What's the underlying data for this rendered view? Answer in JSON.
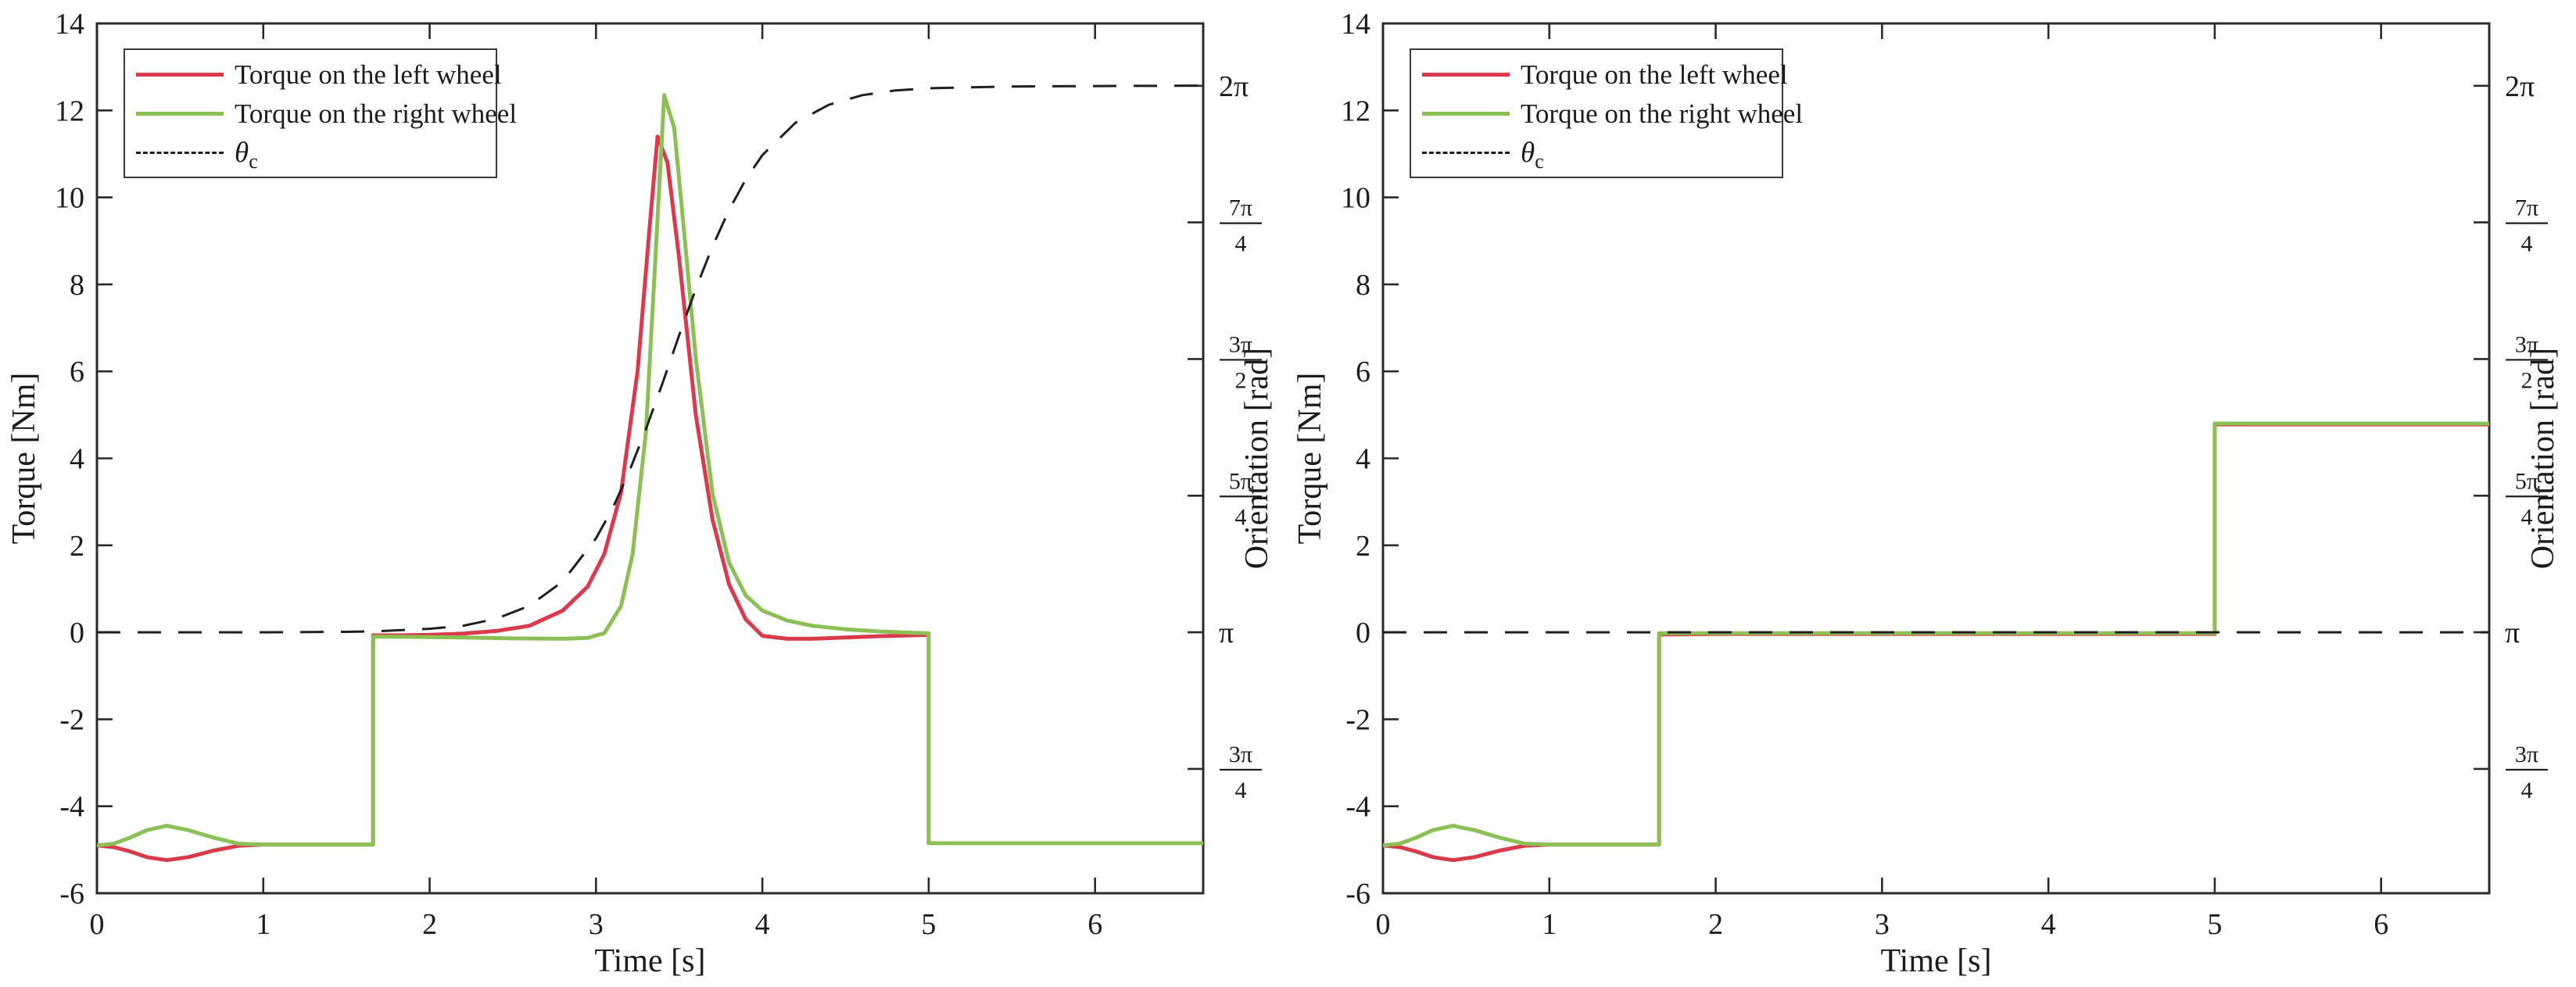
{
  "figure": {
    "background": "#ffffff",
    "colors": {
      "left_wheel": "#d93b4c",
      "right_wheel": "#8cbf55",
      "theta_c": "#1f1f1f",
      "axis": "#2a2a2a"
    }
  },
  "legend": {
    "items": [
      {
        "label": "Torque on the left wheel",
        "series": "left_wheel",
        "line": "solid"
      },
      {
        "label": "Torque on the right wheel",
        "series": "right_wheel",
        "line": "solid"
      },
      {
        "label": "θ",
        "subscript": "c",
        "series": "theta_c",
        "line": "dashed"
      }
    ]
  },
  "chart_data": [
    {
      "type": "line",
      "title": "",
      "xlabel": "Time [s]",
      "ylabel_left": "Torque [Nm]",
      "ylabel_right": "Orientation [rad]",
      "xlim": [
        0,
        6.65
      ],
      "ylim": [
        -6,
        14
      ],
      "grid": false,
      "legend_position": "top-left",
      "xticks": [
        0,
        1,
        2,
        3,
        4,
        5,
        6
      ],
      "yticks_left": [
        -6,
        -4,
        -2,
        0,
        2,
        4,
        6,
        8,
        10,
        12,
        14
      ],
      "right_axis_mapping": "orientation_rad = pi + torque/4",
      "yticks_right": [
        {
          "label": "3π/4",
          "num": "3π",
          "den": "4",
          "rad": 2.3562,
          "torque_equiv": -3.1416
        },
        {
          "label": "π",
          "rad": 3.1416,
          "torque_equiv": 0
        },
        {
          "label": "5π/4",
          "num": "5π",
          "den": "4",
          "rad": 3.927,
          "torque_equiv": 3.1416
        },
        {
          "label": "3π/2",
          "num": "3π",
          "den": "2",
          "rad": 4.7124,
          "torque_equiv": 6.2832
        },
        {
          "label": "7π/4",
          "num": "7π",
          "den": "4",
          "rad": 5.4978,
          "torque_equiv": 9.4248
        },
        {
          "label": "2π",
          "rad": 6.2832,
          "torque_equiv": 12.5664
        }
      ],
      "series": [
        {
          "name": "Torque on the left wheel",
          "color": "left_wheel",
          "dash": false,
          "points": [
            [
              0,
              -4.9
            ],
            [
              0.1,
              -4.94
            ],
            [
              0.2,
              -5.04
            ],
            [
              0.3,
              -5.17
            ],
            [
              0.42,
              -5.24
            ],
            [
              0.55,
              -5.17
            ],
            [
              0.7,
              -5.02
            ],
            [
              0.85,
              -4.91
            ],
            [
              1.0,
              -4.88
            ],
            [
              1.3,
              -4.88
            ],
            [
              1.66,
              -4.88
            ],
            [
              1.66,
              -0.07
            ],
            [
              1.8,
              -0.07
            ],
            [
              2.0,
              -0.06
            ],
            [
              2.2,
              -0.03
            ],
            [
              2.4,
              0.03
            ],
            [
              2.6,
              0.15
            ],
            [
              2.8,
              0.5
            ],
            [
              2.95,
              1.05
            ],
            [
              3.05,
              1.8
            ],
            [
              3.15,
              3.2
            ],
            [
              3.25,
              6.0
            ],
            [
              3.32,
              9.2
            ],
            [
              3.37,
              11.4
            ],
            [
              3.43,
              10.8
            ],
            [
              3.5,
              8.6
            ],
            [
              3.6,
              5.0
            ],
            [
              3.7,
              2.6
            ],
            [
              3.8,
              1.1
            ],
            [
              3.9,
              0.3
            ],
            [
              4.0,
              -0.08
            ],
            [
              4.15,
              -0.15
            ],
            [
              4.3,
              -0.15
            ],
            [
              4.5,
              -0.12
            ],
            [
              4.7,
              -0.09
            ],
            [
              4.9,
              -0.07
            ],
            [
              5.0,
              -0.06
            ],
            [
              5.0,
              -4.85
            ],
            [
              5.5,
              -4.85
            ],
            [
              6.0,
              -4.85
            ],
            [
              6.65,
              -4.85
            ]
          ]
        },
        {
          "name": "Torque on the right wheel",
          "color": "right_wheel",
          "dash": false,
          "points": [
            [
              0,
              -4.9
            ],
            [
              0.1,
              -4.86
            ],
            [
              0.2,
              -4.72
            ],
            [
              0.3,
              -4.55
            ],
            [
              0.42,
              -4.45
            ],
            [
              0.55,
              -4.55
            ],
            [
              0.7,
              -4.72
            ],
            [
              0.85,
              -4.86
            ],
            [
              1.0,
              -4.88
            ],
            [
              1.3,
              -4.88
            ],
            [
              1.66,
              -4.88
            ],
            [
              1.66,
              -0.1
            ],
            [
              1.8,
              -0.1
            ],
            [
              2.0,
              -0.11
            ],
            [
              2.2,
              -0.12
            ],
            [
              2.5,
              -0.14
            ],
            [
              2.8,
              -0.15
            ],
            [
              2.95,
              -0.13
            ],
            [
              3.05,
              -0.02
            ],
            [
              3.15,
              0.6
            ],
            [
              3.22,
              1.8
            ],
            [
              3.3,
              4.6
            ],
            [
              3.36,
              8.8
            ],
            [
              3.41,
              12.35
            ],
            [
              3.47,
              11.6
            ],
            [
              3.53,
              9.2
            ],
            [
              3.6,
              6.3
            ],
            [
              3.7,
              3.2
            ],
            [
              3.8,
              1.6
            ],
            [
              3.9,
              0.85
            ],
            [
              4.0,
              0.5
            ],
            [
              4.15,
              0.27
            ],
            [
              4.3,
              0.15
            ],
            [
              4.5,
              0.07
            ],
            [
              4.7,
              0.02
            ],
            [
              4.9,
              -0.01
            ],
            [
              5.0,
              -0.02
            ],
            [
              5.0,
              -4.85
            ],
            [
              5.5,
              -4.85
            ],
            [
              6.0,
              -4.85
            ],
            [
              6.65,
              -4.85
            ]
          ]
        },
        {
          "name": "θ_c",
          "color": "theta_c",
          "dash": true,
          "points": [
            [
              0,
              0
            ],
            [
              1.0,
              0
            ],
            [
              1.5,
              0.01
            ],
            [
              1.66,
              0.02
            ],
            [
              2.0,
              0.08
            ],
            [
              2.2,
              0.15
            ],
            [
              2.4,
              0.31
            ],
            [
              2.6,
              0.61
            ],
            [
              2.8,
              1.17
            ],
            [
              3.0,
              2.16
            ],
            [
              3.1,
              2.85
            ],
            [
              3.2,
              3.7
            ],
            [
              3.3,
              4.67
            ],
            [
              3.4,
              5.73
            ],
            [
              3.5,
              6.83
            ],
            [
              3.6,
              7.9
            ],
            [
              3.7,
              8.87
            ],
            [
              3.8,
              9.71
            ],
            [
              3.9,
              10.41
            ],
            [
              4.0,
              10.97
            ],
            [
              4.2,
              11.72
            ],
            [
              4.4,
              12.13
            ],
            [
              4.6,
              12.35
            ],
            [
              4.8,
              12.46
            ],
            [
              5.0,
              12.51
            ],
            [
              5.5,
              12.55
            ],
            [
              6.0,
              12.56
            ],
            [
              6.65,
              12.57
            ]
          ]
        }
      ]
    },
    {
      "type": "line",
      "title": "",
      "xlabel": "Time [s]",
      "ylabel_left": "Torque [Nm]",
      "ylabel_right": "Orientation [rad]",
      "xlim": [
        0,
        6.65
      ],
      "ylim": [
        -6,
        14
      ],
      "grid": false,
      "legend_position": "top-left",
      "xticks": [
        0,
        1,
        2,
        3,
        4,
        5,
        6
      ],
      "yticks_left": [
        -6,
        -4,
        -2,
        0,
        2,
        4,
        6,
        8,
        10,
        12,
        14
      ],
      "right_axis_mapping": "orientation_rad = pi + torque/4",
      "yticks_right": [
        {
          "label": "3π/4",
          "num": "3π",
          "den": "4",
          "rad": 2.3562,
          "torque_equiv": -3.1416
        },
        {
          "label": "π",
          "rad": 3.1416,
          "torque_equiv": 0
        },
        {
          "label": "5π/4",
          "num": "5π",
          "den": "4",
          "rad": 3.927,
          "torque_equiv": 3.1416
        },
        {
          "label": "3π/2",
          "num": "3π",
          "den": "2",
          "rad": 4.7124,
          "torque_equiv": 6.2832
        },
        {
          "label": "7π/4",
          "num": "7π",
          "den": "4",
          "rad": 5.4978,
          "torque_equiv": 9.4248
        },
        {
          "label": "2π",
          "rad": 6.2832,
          "torque_equiv": 12.5664
        }
      ],
      "series": [
        {
          "name": "Torque on the left wheel",
          "color": "left_wheel",
          "dash": false,
          "points": [
            [
              0,
              -4.9
            ],
            [
              0.1,
              -4.94
            ],
            [
              0.2,
              -5.04
            ],
            [
              0.3,
              -5.17
            ],
            [
              0.42,
              -5.24
            ],
            [
              0.55,
              -5.17
            ],
            [
              0.7,
              -5.02
            ],
            [
              0.85,
              -4.91
            ],
            [
              1.0,
              -4.88
            ],
            [
              1.3,
              -4.88
            ],
            [
              1.66,
              -4.88
            ],
            [
              1.66,
              -0.05
            ],
            [
              2.0,
              -0.04
            ],
            [
              3.0,
              -0.04
            ],
            [
              4.0,
              -0.04
            ],
            [
              5.0,
              -0.04
            ],
            [
              5.0,
              4.78
            ],
            [
              5.5,
              4.78
            ],
            [
              6.0,
              4.78
            ],
            [
              6.65,
              4.78
            ]
          ]
        },
        {
          "name": "Torque on the right wheel",
          "color": "right_wheel",
          "dash": false,
          "points": [
            [
              0,
              -4.9
            ],
            [
              0.1,
              -4.86
            ],
            [
              0.2,
              -4.72
            ],
            [
              0.3,
              -4.55
            ],
            [
              0.42,
              -4.45
            ],
            [
              0.55,
              -4.55
            ],
            [
              0.7,
              -4.72
            ],
            [
              0.85,
              -4.86
            ],
            [
              1.0,
              -4.88
            ],
            [
              1.3,
              -4.88
            ],
            [
              1.66,
              -4.88
            ],
            [
              1.66,
              -0.02
            ],
            [
              2.0,
              -0.02
            ],
            [
              3.0,
              -0.02
            ],
            [
              4.0,
              -0.02
            ],
            [
              5.0,
              -0.02
            ],
            [
              5.0,
              4.8
            ],
            [
              5.5,
              4.8
            ],
            [
              6.0,
              4.8
            ],
            [
              6.65,
              4.8
            ]
          ]
        },
        {
          "name": "θ_c",
          "color": "theta_c",
          "dash": true,
          "points": [
            [
              0,
              0
            ],
            [
              1.0,
              0
            ],
            [
              2.0,
              0
            ],
            [
              3.0,
              0
            ],
            [
              4.0,
              0
            ],
            [
              5.0,
              0
            ],
            [
              6.0,
              0
            ],
            [
              6.65,
              0
            ]
          ]
        }
      ]
    }
  ]
}
